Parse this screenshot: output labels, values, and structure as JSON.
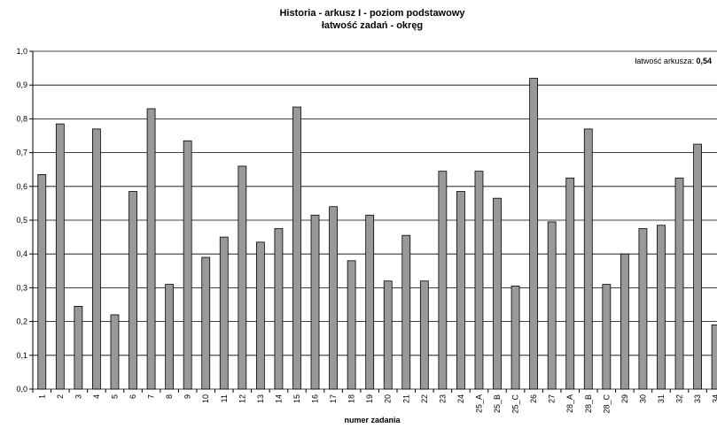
{
  "chart_data": {
    "type": "bar",
    "title": "Historia - arkusz I - poziom podstawowy",
    "subtitle": "łatwość zadań - okręg",
    "x_label": "numer zadania",
    "annotation": {
      "text": "łatwość arkusza:",
      "value": 0.54,
      "value_label": "0,54"
    },
    "categories": [
      "1",
      "2",
      "3",
      "4",
      "5",
      "6",
      "7",
      "8",
      "9",
      "10",
      "11",
      "12",
      "13",
      "14",
      "15",
      "16",
      "17",
      "18",
      "19",
      "20",
      "21",
      "22",
      "23",
      "24",
      "25_A",
      "25_B",
      "25_C",
      "26",
      "27",
      "28_A",
      "28_B",
      "28_C",
      "29",
      "30",
      "31",
      "32",
      "33",
      "34"
    ],
    "values": [
      0.635,
      0.785,
      0.245,
      0.77,
      0.22,
      0.585,
      0.83,
      0.31,
      0.735,
      0.39,
      0.45,
      0.66,
      0.435,
      0.475,
      0.835,
      0.515,
      0.54,
      0.38,
      0.515,
      0.32,
      0.455,
      0.32,
      0.645,
      0.585,
      0.645,
      0.565,
      0.305,
      0.92,
      0.495,
      0.625,
      0.77,
      0.31,
      0.4,
      0.475,
      0.485,
      0.625,
      0.725,
      0.19
    ],
    "color": "#999999",
    "ylim": [
      0,
      1
    ],
    "yticks": [
      {
        "value": 0,
        "label": "0,0"
      },
      {
        "value": 0.1,
        "label": "0,1"
      },
      {
        "value": 0.2,
        "label": "0,2"
      },
      {
        "value": 0.3,
        "label": "0,3"
      },
      {
        "value": 0.4,
        "label": "0,4"
      },
      {
        "value": 0.5,
        "label": "0,5"
      },
      {
        "value": 0.6,
        "label": "0,6"
      },
      {
        "value": 0.7,
        "label": "0,7"
      },
      {
        "value": 0.8,
        "label": "0,8"
      },
      {
        "value": 0.9,
        "label": "0,9"
      },
      {
        "value": 1,
        "label": "1,0"
      }
    ],
    "grid": true
  }
}
